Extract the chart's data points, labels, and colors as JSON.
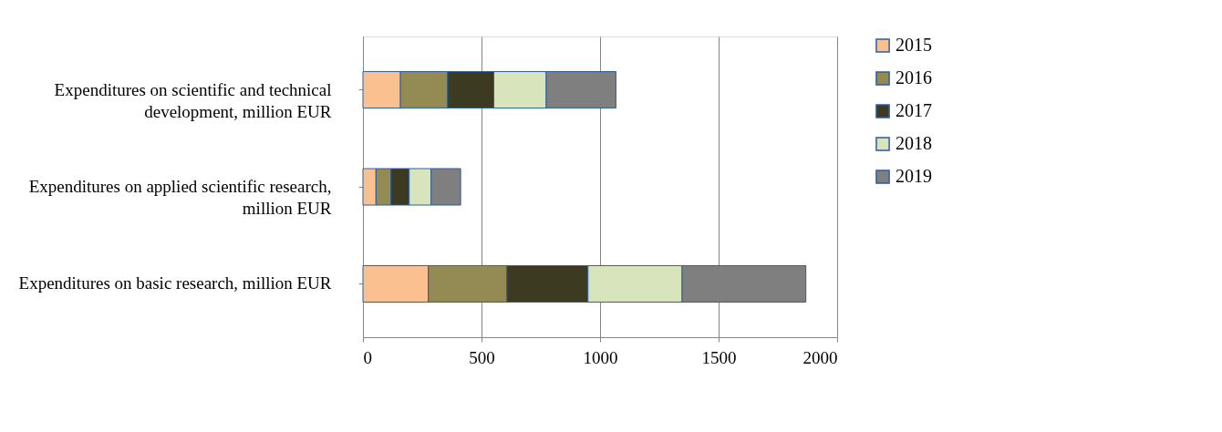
{
  "chart_data": {
    "type": "bar",
    "orientation": "horizontal",
    "stacked": true,
    "categories": [
      "Expenditures on scientific and technical development, million EUR",
      "Expenditures on applied scientific research, million EUR",
      "Expenditures on basic research, million EUR"
    ],
    "series": [
      {
        "name": "2015",
        "color": "#fac090",
        "values": [
          158,
          55,
          276
        ]
      },
      {
        "name": "2016",
        "color": "#948a54",
        "values": [
          199,
          63,
          331
        ]
      },
      {
        "name": "2017",
        "color": "#3d3a22",
        "values": [
          195,
          77,
          342
        ]
      },
      {
        "name": "2018",
        "color": "#d7e4bc",
        "values": [
          221,
          92,
          397
        ]
      },
      {
        "name": "2019",
        "color": "#7f7f7f",
        "values": [
          294,
          125,
          522
        ]
      }
    ],
    "xlim": [
      0,
      2000
    ],
    "xticks": [
      0,
      500,
      1000,
      1500,
      2000
    ],
    "grid": "x",
    "legend": "right"
  }
}
